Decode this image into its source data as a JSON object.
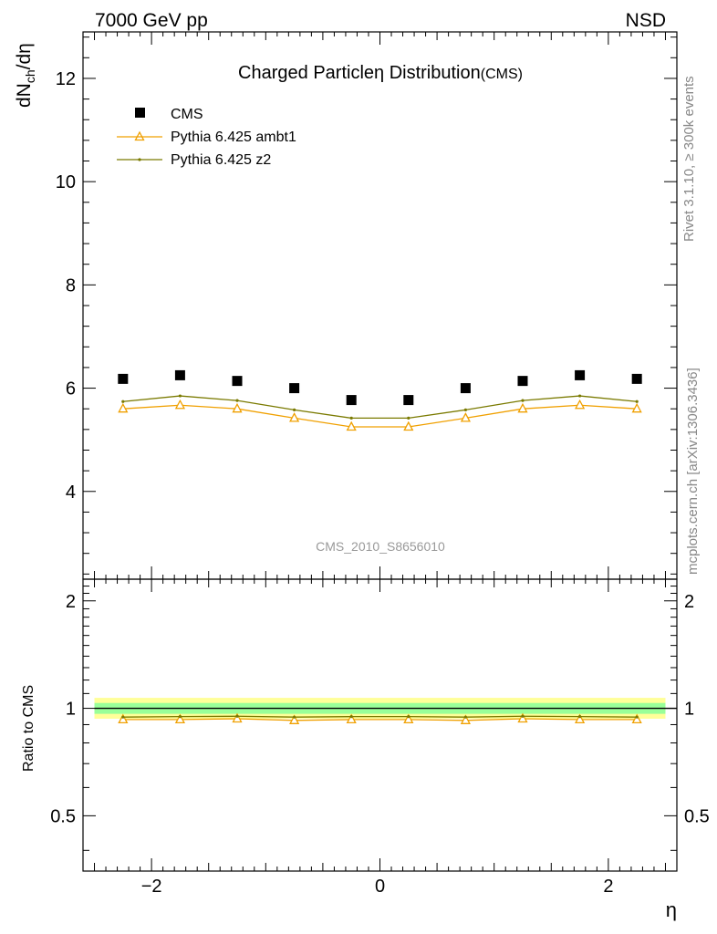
{
  "header": {
    "left": "7000 GeV pp",
    "right": "NSD"
  },
  "side": {
    "rivet": "Rivet 3.1.10, ≥ 300k events",
    "mcplots": "mcplots.cern.ch [arXiv:1306.3436]"
  },
  "chart_data": {
    "type": "scatter",
    "title": "Charged Particleη Distribution",
    "title_suffix": "(CMS)",
    "analysis_label": "CMS_2010_S8656010",
    "xlabel": "η",
    "ylabel_main": "dN",
    "ylabel_sub": "ch",
    "ylabel_rest": "/dη",
    "ratio_ylabel": "Ratio to CMS",
    "xlim": [
      -2.6,
      2.6
    ],
    "ylim_main": [
      2.3,
      12.9
    ],
    "ylim_ratio": [
      0.35,
      2.3
    ],
    "ratio_log_scale": true,
    "x_ticks": [
      -2,
      0,
      2
    ],
    "x_tick_labels": [
      "−2",
      "0",
      "2"
    ],
    "y_ticks_main": [
      4,
      6,
      8,
      10,
      12
    ],
    "y_tick_labels_main": [
      "4",
      "6",
      "8",
      "10",
      "12"
    ],
    "y_ticks_ratio": [
      0.5,
      1,
      2
    ],
    "y_tick_labels_ratio": [
      "0.5",
      "1",
      "2"
    ],
    "legend_position": "top-left",
    "x": [
      -2.25,
      -1.75,
      -1.25,
      -0.75,
      -0.25,
      0.25,
      0.75,
      1.25,
      1.75,
      2.25
    ],
    "series": [
      {
        "name": "CMS",
        "style": "square",
        "color": "#000000",
        "values": [
          6.18,
          6.25,
          6.14,
          6.0,
          5.77,
          5.77,
          6.0,
          6.14,
          6.25,
          6.18
        ],
        "ratio": [
          1,
          1,
          1,
          1,
          1,
          1,
          1,
          1,
          1,
          1
        ]
      },
      {
        "name": "Pythia 6.425 ambt1",
        "style": "triangle",
        "color": "#f0a000",
        "values": [
          5.6,
          5.67,
          5.6,
          5.42,
          5.25,
          5.25,
          5.42,
          5.6,
          5.67,
          5.6
        ],
        "ratio": [
          0.93,
          0.93,
          0.935,
          0.925,
          0.93,
          0.93,
          0.925,
          0.935,
          0.93,
          0.93
        ]
      },
      {
        "name": "Pythia 6.425 z2",
        "style": "dot",
        "color": "#7a7a00",
        "values": [
          5.74,
          5.85,
          5.76,
          5.58,
          5.42,
          5.42,
          5.58,
          5.76,
          5.85,
          5.74
        ],
        "ratio": [
          0.945,
          0.948,
          0.95,
          0.945,
          0.948,
          0.948,
          0.945,
          0.95,
          0.948,
          0.945
        ]
      }
    ],
    "band_colors": {
      "outer": "#ffff99",
      "inner": "#99ff99",
      "line": "#000000"
    },
    "band_outer": [
      0.935,
      1.07
    ],
    "band_inner": [
      0.965,
      1.035
    ]
  }
}
